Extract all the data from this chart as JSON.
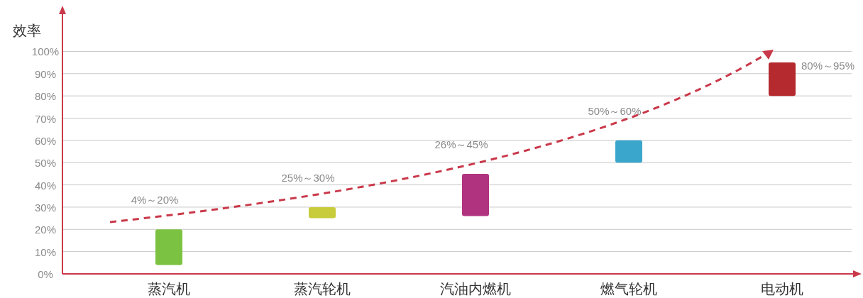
{
  "chart_data": {
    "type": "bar",
    "ylabel": "效率",
    "categories": [
      "蒸汽机",
      "蒸汽轮机",
      "汽油内燃机",
      "燃气轮机",
      "电动机"
    ],
    "base": [
      4,
      25,
      26,
      50,
      80
    ],
    "values": [
      16,
      5,
      19,
      10,
      15
    ],
    "colors": [
      "#7cc242",
      "#c8cc3a",
      "#b0337f",
      "#3aa6cc",
      "#b52a2e"
    ],
    "annotations": [
      {
        "text": "4%～20%",
        "x": "蒸汽机",
        "y": 20
      },
      {
        "text": "25%～30%",
        "x": "蒸汽轮机",
        "y": 30
      },
      {
        "text": "26%～45%",
        "x": "汽油内燃机",
        "y": 45
      },
      {
        "text": "50%～60%",
        "x": "燃气轮机",
        "y": 60
      },
      {
        "text": "80%～95%",
        "x": "电动机",
        "y": 95
      }
    ],
    "ylim": [
      0,
      118
    ],
    "yticks": [
      {
        "value": 0,
        "label": "0%"
      },
      {
        "value": 10,
        "label": "10%"
      },
      {
        "value": 20,
        "label": "20%"
      },
      {
        "value": 30,
        "label": "30%"
      },
      {
        "value": 40,
        "label": "40%"
      },
      {
        "value": 50,
        "label": "50%"
      },
      {
        "value": 60,
        "label": "60%"
      },
      {
        "value": 70,
        "label": "70%"
      },
      {
        "value": 80,
        "label": "80%"
      },
      {
        "value": 90,
        "label": "90%"
      },
      {
        "value": 100,
        "label": "100%"
      }
    ],
    "grid": "y"
  }
}
